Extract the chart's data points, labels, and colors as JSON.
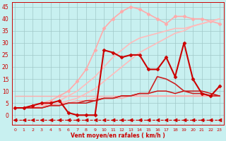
{
  "xlabel": "Vent moyen/en rafales ( km/h )",
  "bg_color": "#c8f0f0",
  "grid_color": "#a0c8c8",
  "x_ticks": [
    0,
    1,
    2,
    3,
    4,
    5,
    6,
    7,
    8,
    9,
    10,
    11,
    12,
    13,
    14,
    15,
    16,
    17,
    18,
    19,
    20,
    21,
    22,
    23
  ],
  "y_ticks": [
    0,
    5,
    10,
    15,
    20,
    25,
    30,
    35,
    40,
    45
  ],
  "ylim": [
    -4,
    47
  ],
  "xlim": [
    -0.3,
    23.5
  ],
  "series": [
    {
      "x": [
        0,
        1,
        2,
        3,
        4,
        5,
        6,
        7,
        8,
        9,
        10,
        11,
        12,
        13,
        14,
        15,
        16,
        17,
        18,
        19,
        20,
        21,
        22,
        23
      ],
      "y": [
        8,
        8,
        8,
        8,
        8,
        8,
        8,
        8,
        8,
        8,
        8,
        8,
        8,
        8,
        8,
        8,
        8,
        8,
        8,
        8,
        8,
        8,
        8,
        8
      ],
      "color": "#ffaaaa",
      "lw": 1.0,
      "marker": null,
      "linestyle": "-"
    },
    {
      "x": [
        0,
        1,
        2,
        3,
        4,
        5,
        6,
        7,
        8,
        9,
        10,
        11,
        12,
        13,
        14,
        15,
        16,
        17,
        18,
        19,
        20,
        21,
        22,
        23
      ],
      "y": [
        3,
        3,
        3,
        4,
        4,
        5,
        5,
        6,
        6,
        7,
        7,
        7,
        7,
        8,
        8,
        8,
        8,
        8,
        8,
        8,
        8,
        8,
        8,
        8
      ],
      "color": "#ffaaaa",
      "lw": 1.0,
      "marker": null,
      "linestyle": "-"
    },
    {
      "x": [
        0,
        1,
        2,
        3,
        4,
        5,
        6,
        7,
        8,
        9,
        10,
        11,
        12,
        13,
        14,
        15,
        16,
        17,
        18,
        19,
        20,
        21,
        22,
        23
      ],
      "y": [
        3,
        3,
        4,
        5,
        6,
        8,
        10,
        14,
        19,
        27,
        36,
        40,
        43,
        45,
        44,
        42,
        40,
        38,
        41,
        41,
        40,
        40,
        39,
        38
      ],
      "color": "#ffaaaa",
      "lw": 1.2,
      "marker": "D",
      "markersize": 2.5,
      "linestyle": "-"
    },
    {
      "x": [
        0,
        1,
        2,
        3,
        4,
        5,
        6,
        7,
        8,
        9,
        10,
        11,
        12,
        13,
        14,
        15,
        16,
        17,
        18,
        19,
        20,
        21,
        22,
        23
      ],
      "y": [
        3,
        3,
        3,
        4,
        5,
        6,
        8,
        10,
        13,
        16,
        20,
        24,
        27,
        30,
        32,
        33,
        34,
        35,
        36,
        36,
        37,
        38,
        39,
        40
      ],
      "color": "#ffbbbb",
      "lw": 1.2,
      "marker": null,
      "linestyle": "-"
    },
    {
      "x": [
        0,
        1,
        2,
        3,
        4,
        5,
        6,
        7,
        8,
        9,
        10,
        11,
        12,
        13,
        14,
        15,
        16,
        17,
        18,
        19,
        20,
        21,
        22,
        23
      ],
      "y": [
        3,
        3,
        3,
        3,
        4,
        5,
        6,
        7,
        9,
        11,
        14,
        17,
        20,
        23,
        26,
        28,
        30,
        32,
        34,
        35,
        37,
        38,
        39,
        40
      ],
      "color": "#ffbbbb",
      "lw": 1.2,
      "marker": null,
      "linestyle": "-"
    },
    {
      "x": [
        0,
        1,
        2,
        3,
        4,
        5,
        6,
        7,
        8,
        9,
        10,
        11,
        12,
        13,
        14,
        15,
        16,
        17,
        18,
        19,
        20,
        21,
        22,
        23
      ],
      "y": [
        3,
        3,
        3,
        3,
        4,
        4,
        5,
        5,
        5,
        6,
        7,
        7,
        8,
        8,
        9,
        9,
        10,
        10,
        9,
        10,
        10,
        10,
        9,
        8
      ],
      "color": "#cc0000",
      "lw": 1.0,
      "marker": null,
      "linestyle": "-"
    },
    {
      "x": [
        0,
        1,
        2,
        3,
        4,
        5,
        6,
        7,
        8,
        9,
        10,
        11,
        12,
        13,
        14,
        15,
        16,
        17,
        18,
        19,
        20,
        21,
        22,
        23
      ],
      "y": [
        3,
        3,
        3,
        3,
        4,
        4,
        5,
        5,
        6,
        6,
        7,
        7,
        8,
        8,
        9,
        9,
        16,
        15,
        13,
        10,
        9,
        9,
        8,
        8
      ],
      "color": "#cc2222",
      "lw": 1.2,
      "marker": null,
      "linestyle": "-"
    },
    {
      "x": [
        0,
        1,
        2,
        3,
        4,
        5,
        6,
        7,
        8,
        9,
        10,
        11,
        12,
        13,
        14,
        15,
        16,
        17,
        18,
        19,
        20,
        21,
        22,
        23
      ],
      "y": [
        3,
        3,
        4,
        5,
        5,
        6,
        1,
        0,
        0,
        0,
        27,
        26,
        24,
        25,
        25,
        19,
        19,
        24,
        16,
        30,
        15,
        9,
        8,
        12
      ],
      "color": "#cc0000",
      "lw": 1.5,
      "marker": "D",
      "markersize": 2.5,
      "linestyle": "-"
    },
    {
      "x": [
        0,
        1,
        2,
        3,
        4,
        5,
        6,
        7,
        8,
        9,
        10,
        11,
        12,
        13,
        14,
        15,
        16,
        17,
        18,
        19,
        20,
        21,
        22,
        23
      ],
      "y": [
        -2,
        -2,
        -2,
        -2,
        -2,
        -2,
        -2,
        -2,
        -2,
        -2,
        -2,
        -2,
        -2,
        -2,
        -2,
        -2,
        -2,
        -2,
        -2,
        -2,
        -2,
        -2,
        -2,
        -2
      ],
      "color": "#cc0000",
      "lw": 0.8,
      "marker": "<",
      "markersize": 3.5,
      "linestyle": "--"
    }
  ]
}
